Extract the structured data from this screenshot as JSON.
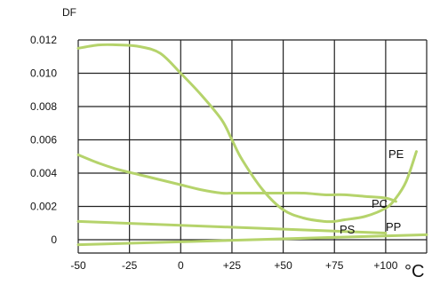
{
  "chart_data": {
    "type": "line",
    "title": "",
    "ylabel": "DF",
    "xlabel": "°C",
    "xlim": [
      -50,
      120
    ],
    "ylim": [
      -0.0008,
      0.012
    ],
    "grid": true,
    "x_ticks": [
      -50,
      -25,
      0,
      25,
      50,
      75,
      100
    ],
    "x_tick_labels": [
      "-50",
      "-25",
      "0",
      "+25",
      "+50",
      "+75",
      "+100"
    ],
    "y_ticks": [
      0,
      0.002,
      0.004,
      0.006,
      0.008,
      0.01,
      0.012
    ],
    "y_tick_labels": [
      "0",
      "0.002",
      "0.004",
      "0.006",
      "0.008",
      "0.010",
      "0.012"
    ],
    "line_color": "#b5d36b",
    "series": [
      {
        "name": "PE",
        "x": [
          -50,
          -40,
          -30,
          -20,
          -10,
          0,
          10,
          20,
          25,
          30,
          40,
          50,
          60,
          70,
          75,
          80,
          90,
          100,
          105,
          110,
          115
        ],
        "y": [
          0.0115,
          0.0117,
          0.0117,
          0.0116,
          0.0112,
          0.01,
          0.0087,
          0.0072,
          0.006,
          0.0048,
          0.003,
          0.0018,
          0.0013,
          0.0011,
          0.0011,
          0.0012,
          0.0014,
          0.0019,
          0.0025,
          0.0035,
          0.0053
        ]
      },
      {
        "name": "PC",
        "x": [
          -50,
          -40,
          -30,
          -20,
          -10,
          0,
          10,
          20,
          25,
          30,
          40,
          50,
          60,
          70,
          75,
          80,
          90,
          100,
          105
        ],
        "y": [
          0.0051,
          0.0046,
          0.0042,
          0.0039,
          0.0036,
          0.0033,
          0.003,
          0.0028,
          0.0028,
          0.0028,
          0.0028,
          0.0028,
          0.0028,
          0.0027,
          0.0027,
          0.0027,
          0.0026,
          0.0025,
          0.0023
        ]
      },
      {
        "name": "PS",
        "x": [
          -50,
          100
        ],
        "y": [
          0.0011,
          0.0004
        ]
      },
      {
        "name": "PP",
        "x": [
          -50,
          120
        ],
        "y": [
          -0.0003,
          0.0003
        ]
      }
    ],
    "series_labels": [
      "PE",
      "PC",
      "PS",
      "PP"
    ]
  }
}
